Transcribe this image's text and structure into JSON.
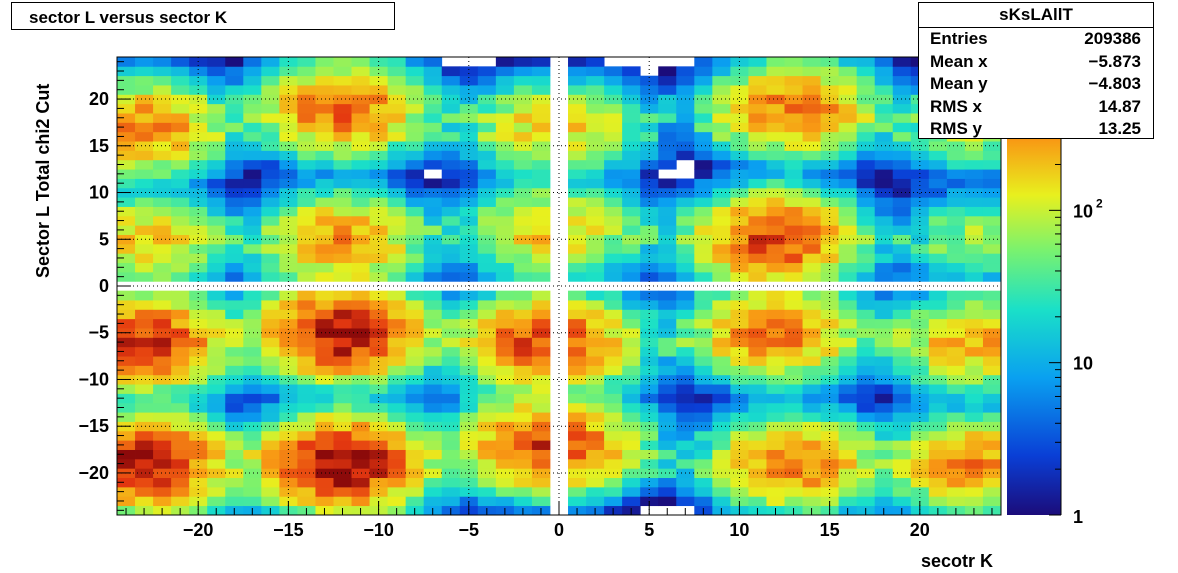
{
  "title": "sector L versus sector K",
  "stats": {
    "name": "sKsLAllT",
    "rows": [
      {
        "label": "Entries",
        "value": "209386"
      },
      {
        "label": "Mean x",
        "value": "−5.873"
      },
      {
        "label": "Mean y",
        "value": "−4.803"
      },
      {
        "label": "RMS x",
        "value": "14.87"
      },
      {
        "label": "RMS y",
        "value": "13.25"
      }
    ]
  },
  "chart_data": {
    "type": "heatmap",
    "title": "sector L versus sector K",
    "xlabel": "secotr K",
    "ylabel": "Sector L  Total chi2 Cut",
    "xlim": [
      -24.5,
      24.5
    ],
    "ylim": [
      -24.5,
      24.5
    ],
    "x_ticks": [
      -20,
      -15,
      -10,
      -5,
      0,
      5,
      10,
      15,
      20
    ],
    "x_tick_labels": [
      "−20",
      "−15",
      "−10",
      "−5",
      "0",
      "5",
      "10",
      "15",
      "20"
    ],
    "y_ticks": [
      -20,
      -15,
      -10,
      -5,
      0,
      5,
      10,
      15,
      20
    ],
    "y_tick_labels": [
      "−20",
      "−15",
      "−10",
      "−5",
      "0",
      "5",
      "10",
      "15",
      "20"
    ],
    "grid": true,
    "color_scale": "log",
    "z_range": [
      1,
      1000
    ],
    "colorbar_ticks": [
      {
        "value": 1,
        "label": "1"
      },
      {
        "value": 10,
        "label": "10"
      },
      {
        "value": 100,
        "label": "10",
        "exponent": "2"
      }
    ],
    "empty_bands_x": [
      0
    ],
    "empty_bands_y": [
      0
    ],
    "clusters": [
      {
        "x": -23,
        "y": 17,
        "peak": 350
      },
      {
        "x": -23,
        "y": 5,
        "peak": 200
      },
      {
        "x": -23,
        "y": -6,
        "peak": 700
      },
      {
        "x": -23,
        "y": -19,
        "peak": 900
      },
      {
        "x": -12,
        "y": 19,
        "peak": 450
      },
      {
        "x": -12,
        "y": 5,
        "peak": 300
      },
      {
        "x": -12,
        "y": -5,
        "peak": 900
      },
      {
        "x": -12,
        "y": -19,
        "peak": 1000
      },
      {
        "x": -1,
        "y": 17,
        "peak": 120
      },
      {
        "x": -1,
        "y": 6,
        "peak": 150
      },
      {
        "x": -1,
        "y": -6,
        "peak": 500
      },
      {
        "x": -1,
        "y": -17,
        "peak": 500
      },
      {
        "x": 1,
        "y": 17,
        "peak": 80
      },
      {
        "x": 1,
        "y": 6,
        "peak": 60
      },
      {
        "x": 1,
        "y": -6,
        "peak": 120
      },
      {
        "x": 1,
        "y": -17,
        "peak": 150
      },
      {
        "x": 13,
        "y": 19,
        "peak": 400
      },
      {
        "x": 12,
        "y": 5,
        "peak": 600
      },
      {
        "x": 12,
        "y": -5,
        "peak": 400
      },
      {
        "x": 13,
        "y": -19,
        "peak": 400
      },
      {
        "x": 23,
        "y": 17,
        "peak": 80
      },
      {
        "x": 23,
        "y": 5,
        "peak": 60
      },
      {
        "x": 23,
        "y": -6,
        "peak": 250
      },
      {
        "x": 23,
        "y": -19,
        "peak": 350
      }
    ]
  }
}
